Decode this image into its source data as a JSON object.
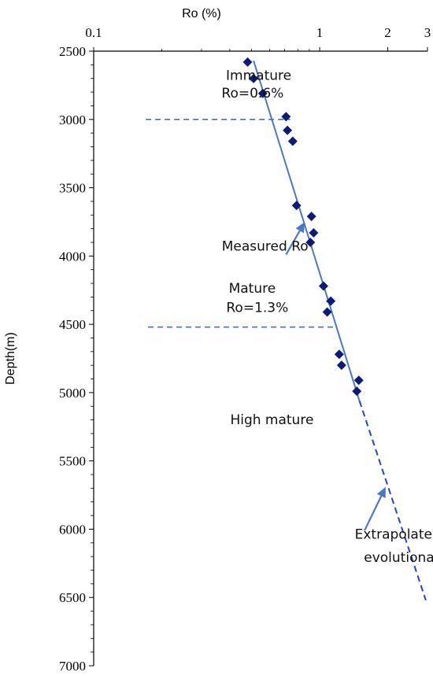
{
  "chart_data": {
    "type": "scatter",
    "xlabel": "Ro (%)",
    "ylabel": "Depth(m)",
    "x_scale": "log",
    "xlim": [
      0.1,
      3
    ],
    "ylim": [
      7000,
      2500
    ],
    "y_inverted": true,
    "x_ticks": [
      {
        "value": 0.1,
        "label": "0.1"
      },
      {
        "value": 1,
        "label": "1"
      },
      {
        "value": 2,
        "label": "2"
      },
      {
        "value": 3,
        "label": "3"
      }
    ],
    "y_ticks": [
      {
        "value": 2500,
        "label": "2500"
      },
      {
        "value": 3000,
        "label": "3000"
      },
      {
        "value": 3500,
        "label": "3500"
      },
      {
        "value": 4000,
        "label": "4000"
      },
      {
        "value": 4500,
        "label": "4500"
      },
      {
        "value": 5000,
        "label": "5000"
      },
      {
        "value": 5500,
        "label": "5500"
      },
      {
        "value": 6000,
        "label": "6000"
      },
      {
        "value": 6500,
        "label": "6500"
      },
      {
        "value": 7000,
        "label": "7000"
      }
    ],
    "grid": false,
    "series": [
      {
        "marker": "diamond",
        "color": "#0d1a7a",
        "points": [
          {
            "x": 0.48,
            "y": 2580
          },
          {
            "x": 0.51,
            "y": 2700
          },
          {
            "x": 0.56,
            "y": 2810
          },
          {
            "x": 0.71,
            "y": 2980
          },
          {
            "x": 0.72,
            "y": 3080
          },
          {
            "x": 0.76,
            "y": 3160
          },
          {
            "x": 0.79,
            "y": 3630
          },
          {
            "x": 0.92,
            "y": 3710
          },
          {
            "x": 0.94,
            "y": 3830
          },
          {
            "x": 0.91,
            "y": 3900
          },
          {
            "x": 1.04,
            "y": 4220
          },
          {
            "x": 1.12,
            "y": 4330
          },
          {
            "x": 1.08,
            "y": 4410
          },
          {
            "x": 1.22,
            "y": 4720
          },
          {
            "x": 1.25,
            "y": 4800
          },
          {
            "x": 1.49,
            "y": 4910
          },
          {
            "x": 1.46,
            "y": 4990
          }
        ]
      }
    ],
    "trend_solid": [
      {
        "x": 0.51,
        "y": 2570
      },
      {
        "x": 1.5,
        "y": 5060
      }
    ],
    "trend_dashed": [
      {
        "x": 1.5,
        "y": 5060
      },
      {
        "x": 2.95,
        "y": 6520
      }
    ],
    "reference_lines": [
      {
        "y": 3000,
        "x_from": 0.17,
        "x_to": 0.74
      },
      {
        "y": 4520,
        "x_from": 0.174,
        "x_to": 1.17
      }
    ],
    "arrows": [
      {
        "from": {
          "x": 0.71,
          "y": 3990
        },
        "to": {
          "x": 0.86,
          "y": 3750
        }
      },
      {
        "from": {
          "x": 1.58,
          "y": 6010
        },
        "to": {
          "x": 1.96,
          "y": 5690
        }
      }
    ],
    "annotations": [
      {
        "text": "Immature",
        "x": 0.385,
        "y": 2710
      },
      {
        "text": "Ro=0.6%",
        "x": 0.368,
        "y": 2840
      },
      {
        "text": "Measured Ro",
        "x": 0.369,
        "y": 3960
      },
      {
        "text": "Mature",
        "x": 0.396,
        "y": 4270
      },
      {
        "text": "Ro=1.3%",
        "x": 0.386,
        "y": 4410
      },
      {
        "text": "High mature",
        "x": 0.402,
        "y": 5230
      },
      {
        "text": "Extrapolated Ro",
        "x": 1.43,
        "y": 6070
      },
      {
        "text": "evolutionary trend line",
        "x": 1.57,
        "y": 6240
      }
    ],
    "colors": {
      "marker": "#0d1a7a",
      "trend": "#4a78c4",
      "dashed_trend": "#2244d0",
      "reference": "#3a66b8",
      "arrow": "#4a78c4",
      "axis": "#000000"
    }
  }
}
